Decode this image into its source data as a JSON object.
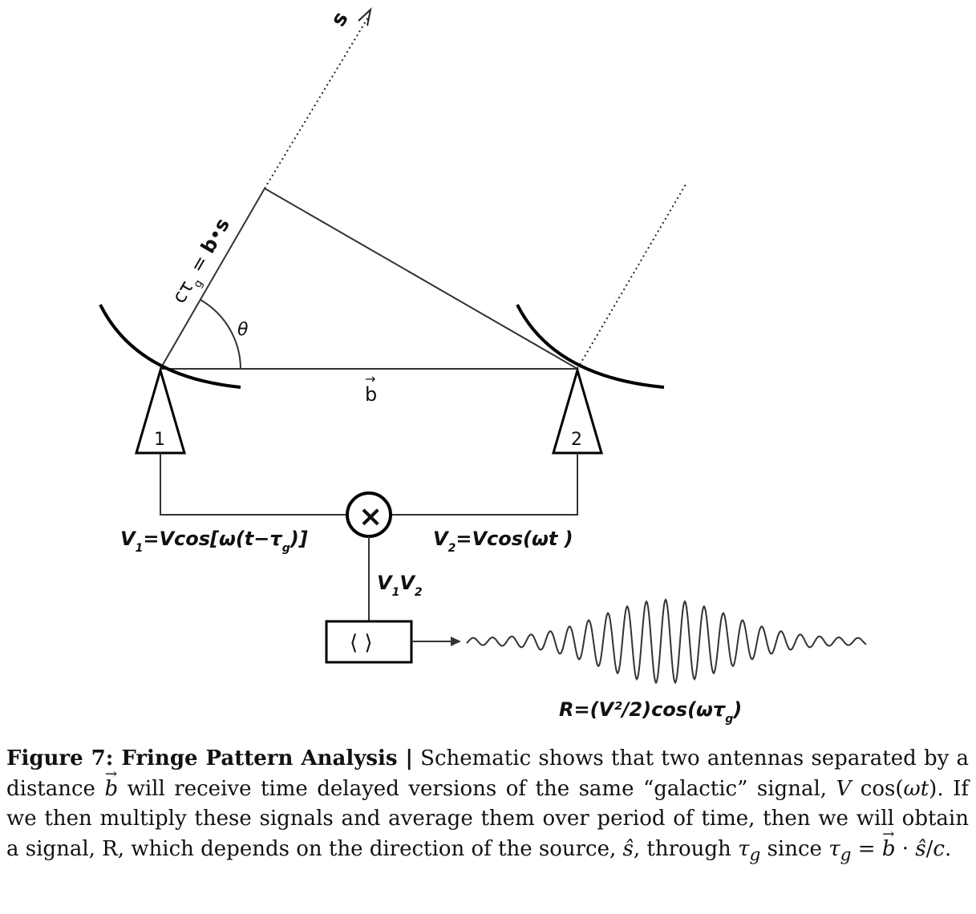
{
  "diagram": {
    "source_label": "s",
    "delay_label": "cτ",
    "delay_sub": "g",
    "delay_eq": " = ",
    "delay_b": "b",
    "delay_dot": "•",
    "delay_s": "s",
    "angle_label": "θ",
    "baseline_label": "b",
    "antenna1_label": "1",
    "antenna2_label": "2",
    "multiplier_symbol": "×",
    "v1_label": "V",
    "v1_sub": "1",
    "v1_expr": "=Vcos[ω(t−τ",
    "v1_sub2": "g",
    "v1_end": ")]",
    "v2_label": "V",
    "v2_sub": "2",
    "v2_expr": "=Vcos(ωt )",
    "product_v1": "V",
    "product_v1_sub": "1",
    "product_v2": "V",
    "product_v2_sub": "2",
    "averager_label": "⟨ ⟩",
    "response_prefix": "R=(V²/2)cos(ωτ",
    "response_sub": "g",
    "response_end": ")"
  },
  "caption": {
    "title": "Figure 7: Fringe Pattern Analysis |",
    "t1": " Schematic shows that two antennas separated by a distance ",
    "b1": "b",
    "t2": " will receive time delayed versions of the same “galactic” signal, ",
    "sig": "V",
    "sig2": " cos(",
    "sig3": "ωt",
    "sig4": ").",
    "t3": " If we then multiply these signals and average them over period of time, then we will obtain a signal, R, which depends on the direction of the source, ",
    "shat": "ŝ",
    "t4": ", through ",
    "tau": "τ",
    "tau_sub": "g",
    "t5": " since ",
    "tau2": "τ",
    "tau2_sub": "g",
    "t6": " = ",
    "b2": "b",
    "t7": " · ",
    "shat2": "ŝ",
    "t8": "/",
    "c": "c",
    "t9": "."
  }
}
